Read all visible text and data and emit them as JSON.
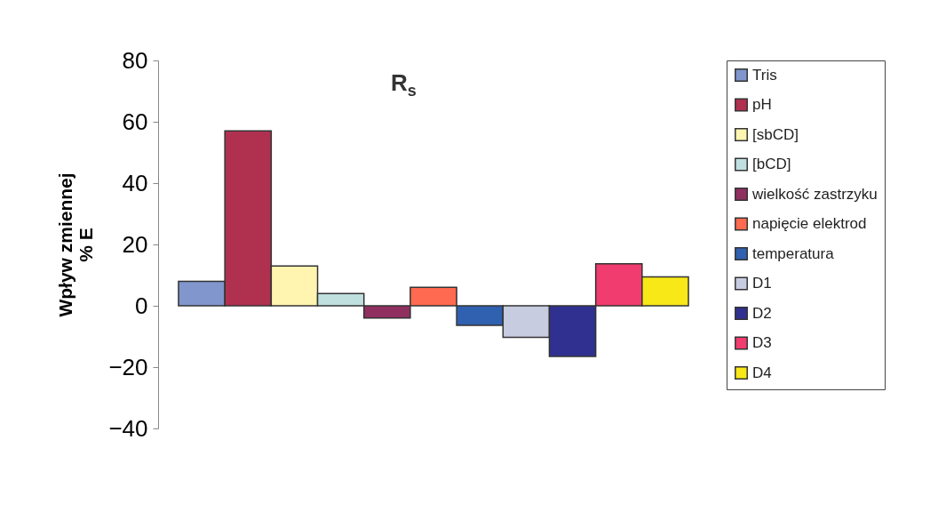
{
  "chart_data": {
    "type": "bar",
    "title": "R$_{s}$",
    "ylabel": "Wpływ zmiennej\n% E",
    "categories": [
      null
    ],
    "series": [
      {
        "name": "Tris",
        "color": "#8096cc",
        "values": [
          8
        ]
      },
      {
        "name": "pH",
        "color": "#b03050",
        "values": [
          57
        ]
      },
      {
        "name": "[sbCD]",
        "color": "#fff5b0",
        "values": [
          13
        ]
      },
      {
        "name": "[bCD]",
        "color": "#c0e0e0",
        "values": [
          4
        ]
      },
      {
        "name": "wielkość zastrzyku",
        "color": "#903060",
        "values": [
          -4
        ]
      },
      {
        "name": "napięcie elektrod",
        "color": "#ff6a50",
        "values": [
          6
        ]
      },
      {
        "name": "temperatura",
        "color": "#3060b0",
        "values": [
          -6.4
        ]
      },
      {
        "name": "D1",
        "color": "#c8cce0",
        "values": [
          -10.3
        ]
      },
      {
        "name": "D2",
        "color": "#303090",
        "values": [
          -16.5
        ]
      },
      {
        "name": "D3",
        "color": "#f03c6e",
        "values": [
          13.7
        ]
      },
      {
        "name": "D4",
        "color": "#f8e818",
        "values": [
          9.4
        ]
      }
    ],
    "ylim": [
      -40,
      80
    ],
    "yticks": [
      -40,
      -20,
      0,
      20,
      40,
      60,
      80
    ],
    "legend": "right",
    "grid": false
  }
}
